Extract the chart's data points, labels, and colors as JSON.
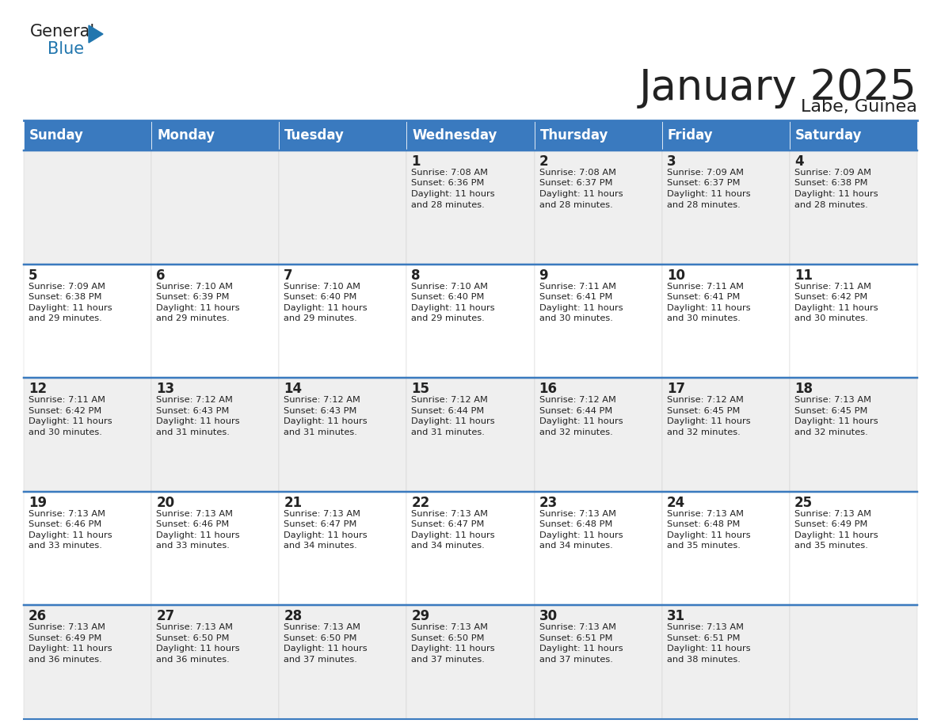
{
  "title": "January 2025",
  "subtitle": "Labe, Guinea",
  "header_color": "#3a7abf",
  "header_text_color": "#ffffff",
  "cell_bg_even": "#efefef",
  "cell_bg_odd": "#ffffff",
  "border_color": "#3a7abf",
  "day_names": [
    "Sunday",
    "Monday",
    "Tuesday",
    "Wednesday",
    "Thursday",
    "Friday",
    "Saturday"
  ],
  "days_data": [
    {
      "day": 1,
      "col": 3,
      "row": 0,
      "sunrise": "7:08 AM",
      "sunset": "6:36 PM",
      "daylight_hours": 11,
      "daylight_minutes": 28
    },
    {
      "day": 2,
      "col": 4,
      "row": 0,
      "sunrise": "7:08 AM",
      "sunset": "6:37 PM",
      "daylight_hours": 11,
      "daylight_minutes": 28
    },
    {
      "day": 3,
      "col": 5,
      "row": 0,
      "sunrise": "7:09 AM",
      "sunset": "6:37 PM",
      "daylight_hours": 11,
      "daylight_minutes": 28
    },
    {
      "day": 4,
      "col": 6,
      "row": 0,
      "sunrise": "7:09 AM",
      "sunset": "6:38 PM",
      "daylight_hours": 11,
      "daylight_minutes": 28
    },
    {
      "day": 5,
      "col": 0,
      "row": 1,
      "sunrise": "7:09 AM",
      "sunset": "6:38 PM",
      "daylight_hours": 11,
      "daylight_minutes": 29
    },
    {
      "day": 6,
      "col": 1,
      "row": 1,
      "sunrise": "7:10 AM",
      "sunset": "6:39 PM",
      "daylight_hours": 11,
      "daylight_minutes": 29
    },
    {
      "day": 7,
      "col": 2,
      "row": 1,
      "sunrise": "7:10 AM",
      "sunset": "6:40 PM",
      "daylight_hours": 11,
      "daylight_minutes": 29
    },
    {
      "day": 8,
      "col": 3,
      "row": 1,
      "sunrise": "7:10 AM",
      "sunset": "6:40 PM",
      "daylight_hours": 11,
      "daylight_minutes": 29
    },
    {
      "day": 9,
      "col": 4,
      "row": 1,
      "sunrise": "7:11 AM",
      "sunset": "6:41 PM",
      "daylight_hours": 11,
      "daylight_minutes": 30
    },
    {
      "day": 10,
      "col": 5,
      "row": 1,
      "sunrise": "7:11 AM",
      "sunset": "6:41 PM",
      "daylight_hours": 11,
      "daylight_minutes": 30
    },
    {
      "day": 11,
      "col": 6,
      "row": 1,
      "sunrise": "7:11 AM",
      "sunset": "6:42 PM",
      "daylight_hours": 11,
      "daylight_minutes": 30
    },
    {
      "day": 12,
      "col": 0,
      "row": 2,
      "sunrise": "7:11 AM",
      "sunset": "6:42 PM",
      "daylight_hours": 11,
      "daylight_minutes": 30
    },
    {
      "day": 13,
      "col": 1,
      "row": 2,
      "sunrise": "7:12 AM",
      "sunset": "6:43 PM",
      "daylight_hours": 11,
      "daylight_minutes": 31
    },
    {
      "day": 14,
      "col": 2,
      "row": 2,
      "sunrise": "7:12 AM",
      "sunset": "6:43 PM",
      "daylight_hours": 11,
      "daylight_minutes": 31
    },
    {
      "day": 15,
      "col": 3,
      "row": 2,
      "sunrise": "7:12 AM",
      "sunset": "6:44 PM",
      "daylight_hours": 11,
      "daylight_minutes": 31
    },
    {
      "day": 16,
      "col": 4,
      "row": 2,
      "sunrise": "7:12 AM",
      "sunset": "6:44 PM",
      "daylight_hours": 11,
      "daylight_minutes": 32
    },
    {
      "day": 17,
      "col": 5,
      "row": 2,
      "sunrise": "7:12 AM",
      "sunset": "6:45 PM",
      "daylight_hours": 11,
      "daylight_minutes": 32
    },
    {
      "day": 18,
      "col": 6,
      "row": 2,
      "sunrise": "7:13 AM",
      "sunset": "6:45 PM",
      "daylight_hours": 11,
      "daylight_minutes": 32
    },
    {
      "day": 19,
      "col": 0,
      "row": 3,
      "sunrise": "7:13 AM",
      "sunset": "6:46 PM",
      "daylight_hours": 11,
      "daylight_minutes": 33
    },
    {
      "day": 20,
      "col": 1,
      "row": 3,
      "sunrise": "7:13 AM",
      "sunset": "6:46 PM",
      "daylight_hours": 11,
      "daylight_minutes": 33
    },
    {
      "day": 21,
      "col": 2,
      "row": 3,
      "sunrise": "7:13 AM",
      "sunset": "6:47 PM",
      "daylight_hours": 11,
      "daylight_minutes": 34
    },
    {
      "day": 22,
      "col": 3,
      "row": 3,
      "sunrise": "7:13 AM",
      "sunset": "6:47 PM",
      "daylight_hours": 11,
      "daylight_minutes": 34
    },
    {
      "day": 23,
      "col": 4,
      "row": 3,
      "sunrise": "7:13 AM",
      "sunset": "6:48 PM",
      "daylight_hours": 11,
      "daylight_minutes": 34
    },
    {
      "day": 24,
      "col": 5,
      "row": 3,
      "sunrise": "7:13 AM",
      "sunset": "6:48 PM",
      "daylight_hours": 11,
      "daylight_minutes": 35
    },
    {
      "day": 25,
      "col": 6,
      "row": 3,
      "sunrise": "7:13 AM",
      "sunset": "6:49 PM",
      "daylight_hours": 11,
      "daylight_minutes": 35
    },
    {
      "day": 26,
      "col": 0,
      "row": 4,
      "sunrise": "7:13 AM",
      "sunset": "6:49 PM",
      "daylight_hours": 11,
      "daylight_minutes": 36
    },
    {
      "day": 27,
      "col": 1,
      "row": 4,
      "sunrise": "7:13 AM",
      "sunset": "6:50 PM",
      "daylight_hours": 11,
      "daylight_minutes": 36
    },
    {
      "day": 28,
      "col": 2,
      "row": 4,
      "sunrise": "7:13 AM",
      "sunset": "6:50 PM",
      "daylight_hours": 11,
      "daylight_minutes": 37
    },
    {
      "day": 29,
      "col": 3,
      "row": 4,
      "sunrise": "7:13 AM",
      "sunset": "6:50 PM",
      "daylight_hours": 11,
      "daylight_minutes": 37
    },
    {
      "day": 30,
      "col": 4,
      "row": 4,
      "sunrise": "7:13 AM",
      "sunset": "6:51 PM",
      "daylight_hours": 11,
      "daylight_minutes": 37
    },
    {
      "day": 31,
      "col": 5,
      "row": 4,
      "sunrise": "7:13 AM",
      "sunset": "6:51 PM",
      "daylight_hours": 11,
      "daylight_minutes": 38
    }
  ],
  "num_rows": 5,
  "text_color": "#222222",
  "title_fontsize": 38,
  "subtitle_fontsize": 16,
  "header_fontsize": 12,
  "day_num_fontsize": 12,
  "cell_text_fontsize": 8.2,
  "logo_general_color": "#222222",
  "logo_blue_color": "#2176ae",
  "logo_triangle_color": "#2176ae"
}
